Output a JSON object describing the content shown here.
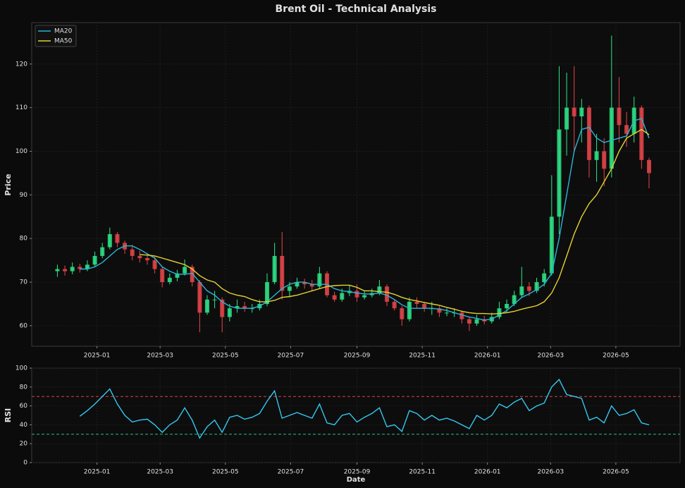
{
  "chart_data": [
    {
      "type": "candlestick",
      "title": "Brent Oil - Technical Analysis",
      "ylabel": "Price",
      "up_color": "#2ee88a",
      "down_color": "#e8474b",
      "legend": "upper left",
      "grid": true,
      "x": [
        "2024-11-25",
        "2024-12-02",
        "2024-12-09",
        "2024-12-16",
        "2024-12-23",
        "2024-12-30",
        "2025-01-06",
        "2025-01-13",
        "2025-01-20",
        "2025-01-27",
        "2025-02-03",
        "2025-02-10",
        "2025-02-17",
        "2025-02-24",
        "2025-03-03",
        "2025-03-10",
        "2025-03-17",
        "2025-03-24",
        "2025-03-31",
        "2025-04-07",
        "2025-04-14",
        "2025-04-21",
        "2025-04-28",
        "2025-05-05",
        "2025-05-12",
        "2025-05-19",
        "2025-05-26",
        "2025-06-02",
        "2025-06-09",
        "2025-06-16",
        "2025-06-23",
        "2025-06-30",
        "2025-07-07",
        "2025-07-14",
        "2025-07-21",
        "2025-07-28",
        "2025-08-04",
        "2025-08-11",
        "2025-08-18",
        "2025-08-25",
        "2025-09-01",
        "2025-09-08",
        "2025-09-15",
        "2025-09-22",
        "2025-09-29",
        "2025-10-06",
        "2025-10-13",
        "2025-10-20",
        "2025-10-27",
        "2025-11-03",
        "2025-11-10",
        "2025-11-17",
        "2025-11-24",
        "2025-12-01",
        "2025-12-08",
        "2025-12-15",
        "2025-12-22",
        "2025-12-29",
        "2026-01-05",
        "2026-01-12",
        "2026-01-19",
        "2026-01-26",
        "2026-02-02",
        "2026-02-09",
        "2026-02-16",
        "2026-02-23",
        "2026-03-02",
        "2026-03-09",
        "2026-03-16",
        "2026-03-23",
        "2026-03-30",
        "2026-04-06",
        "2026-04-13",
        "2026-04-20",
        "2026-04-27",
        "2026-05-04",
        "2026-05-11",
        "2026-05-18",
        "2026-05-25",
        "2026-06-01"
      ],
      "ohlc": [
        [
          72.5,
          74,
          71.2,
          73
        ],
        [
          73,
          73.8,
          71.5,
          72.5
        ],
        [
          72.5,
          74.5,
          71.8,
          73.5
        ],
        [
          73.5,
          74.2,
          72.2,
          73
        ],
        [
          73,
          75,
          72.5,
          74
        ],
        [
          74,
          77,
          73.5,
          76
        ],
        [
          76,
          79,
          75.5,
          78
        ],
        [
          78,
          82.5,
          77.5,
          81
        ],
        [
          81,
          81.5,
          78,
          79
        ],
        [
          79,
          79.5,
          76.5,
          77.5
        ],
        [
          77.5,
          78.5,
          75,
          76
        ],
        [
          76,
          77.2,
          74.5,
          75.5
        ],
        [
          75.5,
          76.5,
          74,
          75
        ],
        [
          75,
          75.8,
          72,
          73
        ],
        [
          73,
          73.5,
          68.8,
          70
        ],
        [
          70,
          72,
          69.5,
          71
        ],
        [
          71,
          72.8,
          70.2,
          72
        ],
        [
          72,
          75.2,
          71.5,
          73.5
        ],
        [
          73.5,
          74,
          69,
          70
        ],
        [
          70,
          70.5,
          58.5,
          63
        ],
        [
          63,
          67,
          62.5,
          66
        ],
        [
          66,
          68,
          64,
          66
        ],
        [
          66,
          66.5,
          58.5,
          62
        ],
        [
          62,
          65,
          61,
          64
        ],
        [
          64,
          66,
          63,
          64.5
        ],
        [
          64.5,
          65.5,
          63.2,
          64
        ],
        [
          64,
          65,
          63,
          64
        ],
        [
          64,
          66,
          63.5,
          65
        ],
        [
          65,
          72,
          64.5,
          70
        ],
        [
          70,
          79,
          69.5,
          76
        ],
        [
          76,
          81.5,
          66,
          68
        ],
        [
          68,
          70,
          66.5,
          69
        ],
        [
          69,
          71,
          68.5,
          70
        ],
        [
          70,
          70.8,
          68.5,
          69.5
        ],
        [
          69.5,
          70.5,
          68,
          69
        ],
        [
          69,
          73.5,
          68.5,
          72
        ],
        [
          72,
          72.5,
          66.5,
          67
        ],
        [
          67,
          67.8,
          65.5,
          66
        ],
        [
          66,
          68.5,
          65.5,
          67.5
        ],
        [
          67.5,
          69.3,
          66.8,
          68
        ],
        [
          68,
          69.5,
          65.5,
          66.5
        ],
        [
          66.5,
          68,
          66,
          67
        ],
        [
          67,
          68.5,
          66.5,
          67.5
        ],
        [
          67.5,
          70.5,
          67,
          69
        ],
        [
          69,
          69.5,
          64.5,
          65.5
        ],
        [
          65.5,
          66,
          63.5,
          64
        ],
        [
          64,
          64.5,
          60,
          61.5
        ],
        [
          61.5,
          66.5,
          61,
          65.5
        ],
        [
          65.5,
          66.5,
          64,
          65
        ],
        [
          65,
          65.5,
          63.2,
          64
        ],
        [
          64,
          65.5,
          62.5,
          64
        ],
        [
          64,
          64.5,
          62,
          63
        ],
        [
          63,
          64,
          62.2,
          63
        ],
        [
          63,
          64,
          62,
          63
        ],
        [
          63,
          63.5,
          60.5,
          61.5
        ],
        [
          61.5,
          62,
          58.8,
          60.5
        ],
        [
          60.5,
          62.5,
          60,
          61.5
        ],
        [
          61.5,
          62.3,
          60.3,
          61
        ],
        [
          61,
          63,
          60.5,
          62
        ],
        [
          62,
          65.5,
          61.5,
          64
        ],
        [
          64,
          66,
          63,
          65
        ],
        [
          65,
          68,
          64.5,
          67
        ],
        [
          67,
          73.5,
          66.5,
          69
        ],
        [
          69,
          70,
          66.8,
          68
        ],
        [
          68,
          71,
          67.5,
          70
        ],
        [
          70,
          73,
          69,
          72
        ],
        [
          72,
          94.5,
          71.5,
          85
        ],
        [
          85,
          119.5,
          81,
          105
        ],
        [
          105,
          118,
          99,
          110
        ],
        [
          110,
          119.5,
          100,
          108
        ],
        [
          108,
          112,
          102,
          110
        ],
        [
          110,
          110.5,
          94,
          98
        ],
        [
          98,
          104,
          93,
          100
        ],
        [
          100,
          103,
          92,
          96
        ],
        [
          96,
          126.5,
          94,
          110
        ],
        [
          110,
          117,
          102,
          106
        ],
        [
          106,
          109,
          101,
          104
        ],
        [
          104,
          112.5,
          102,
          110
        ],
        [
          110,
          110.5,
          96,
          98
        ],
        [
          98,
          98.5,
          91.5,
          95
        ]
      ],
      "series": [
        {
          "name": "MA20",
          "color": "#29b6d8",
          "values": [
            null,
            null,
            null,
            73,
            73,
            73.5,
            74.5,
            76,
            77.5,
            78.3,
            78.3,
            77.5,
            76.5,
            75.5,
            73.5,
            72.5,
            71.8,
            71.8,
            72,
            70,
            68,
            67,
            65.5,
            64.5,
            64,
            64,
            64,
            64.5,
            65.5,
            67,
            68.5,
            69.5,
            70,
            70,
            69.5,
            69.5,
            69.5,
            68.5,
            68,
            67.8,
            67.5,
            67.3,
            67.3,
            67.5,
            67,
            66,
            64.8,
            64,
            64,
            64,
            64,
            63.8,
            63.5,
            63,
            62.5,
            62,
            61.7,
            61.3,
            61.5,
            62.5,
            63.5,
            65,
            66.5,
            67.3,
            68.3,
            69.5,
            72,
            80,
            90,
            100,
            105,
            105.5,
            103,
            102,
            102.5,
            103,
            103.5,
            107,
            107.5,
            103
          ]
        },
        {
          "name": "MA50",
          "color": "#e6d230",
          "values": [
            null,
            null,
            null,
            null,
            null,
            null,
            null,
            null,
            null,
            null,
            null,
            76.3,
            76.2,
            76,
            75.5,
            75,
            74.5,
            74,
            73,
            71.5,
            70.5,
            70,
            68.5,
            67.5,
            67,
            66.7,
            66,
            65.5,
            65.5,
            65.8,
            66.5,
            66.7,
            67,
            67.5,
            68,
            68.5,
            69,
            69.2,
            69.3,
            69.3,
            68.8,
            68,
            68,
            67.8,
            67.7,
            67.2,
            66.5,
            66,
            65.7,
            65.3,
            65,
            64.7,
            64.2,
            63.8,
            63.3,
            63,
            62.8,
            62.8,
            62.7,
            62.8,
            63,
            63.3,
            63.8,
            64.2,
            64.6,
            65.5,
            67.5,
            71,
            76,
            81,
            85,
            88,
            90,
            93,
            96,
            100,
            103,
            104,
            105,
            103.8
          ]
        }
      ],
      "xlim": [
        "2024-11-01",
        "2026-06-30"
      ],
      "xticks": [
        {
          "value": "2025-01-01",
          "label": "2025-01"
        },
        {
          "value": "2025-03-01",
          "label": "2025-03"
        },
        {
          "value": "2025-05-01",
          "label": "2025-05"
        },
        {
          "value": "2025-07-01",
          "label": "2025-07"
        },
        {
          "value": "2025-09-01",
          "label": "2025-09"
        },
        {
          "value": "2025-11-01",
          "label": "2025-11"
        },
        {
          "value": "2026-01-01",
          "label": "2026-01"
        },
        {
          "value": "2026-03-01",
          "label": "2026-03"
        },
        {
          "value": "2026-05-01",
          "label": "2026-05"
        }
      ],
      "ylim": [
        55.3,
        129.5
      ],
      "yticks": [
        60,
        70,
        80,
        90,
        100,
        110,
        120
      ]
    },
    {
      "type": "line",
      "ylabel": "RSI",
      "xlabel": "Date",
      "color": "#35c8ef",
      "grid": true,
      "values": [
        null,
        null,
        null,
        49,
        55,
        62,
        70,
        78,
        62,
        50,
        43,
        45,
        46,
        40,
        32,
        40,
        45,
        58,
        45,
        26,
        38,
        45,
        32,
        48,
        50,
        46,
        48,
        52,
        65,
        76,
        47,
        50,
        53,
        50,
        47,
        62,
        42,
        40,
        50,
        52,
        43,
        48,
        52,
        58,
        38,
        40,
        33,
        55,
        52,
        45,
        50,
        45,
        47,
        44,
        40,
        36,
        50,
        45,
        50,
        62,
        58,
        64,
        68,
        55,
        60,
        63,
        80,
        88,
        72,
        70,
        68,
        45,
        48,
        42,
        60,
        50,
        52,
        56,
        42,
        40
      ],
      "hlines": [
        {
          "value": 70,
          "color": "#e04040"
        },
        {
          "value": 30,
          "color": "#26c281"
        }
      ],
      "xticks": [
        {
          "value": "2025-01-01",
          "label": "2025-01"
        },
        {
          "value": "2025-03-01",
          "label": "2025-03"
        },
        {
          "value": "2025-05-01",
          "label": "2025-05"
        },
        {
          "value": "2025-07-01",
          "label": "2025-07"
        },
        {
          "value": "2025-09-01",
          "label": "2025-09"
        },
        {
          "value": "2025-11-01",
          "label": "2025-11"
        },
        {
          "value": "2026-01-01",
          "label": "2026-01"
        },
        {
          "value": "2026-03-01",
          "label": "2026-03"
        },
        {
          "value": "2026-05-01",
          "label": "2026-05"
        }
      ],
      "ylim": [
        0,
        100
      ],
      "yticks": [
        0,
        20,
        40,
        60,
        80,
        100
      ]
    }
  ]
}
